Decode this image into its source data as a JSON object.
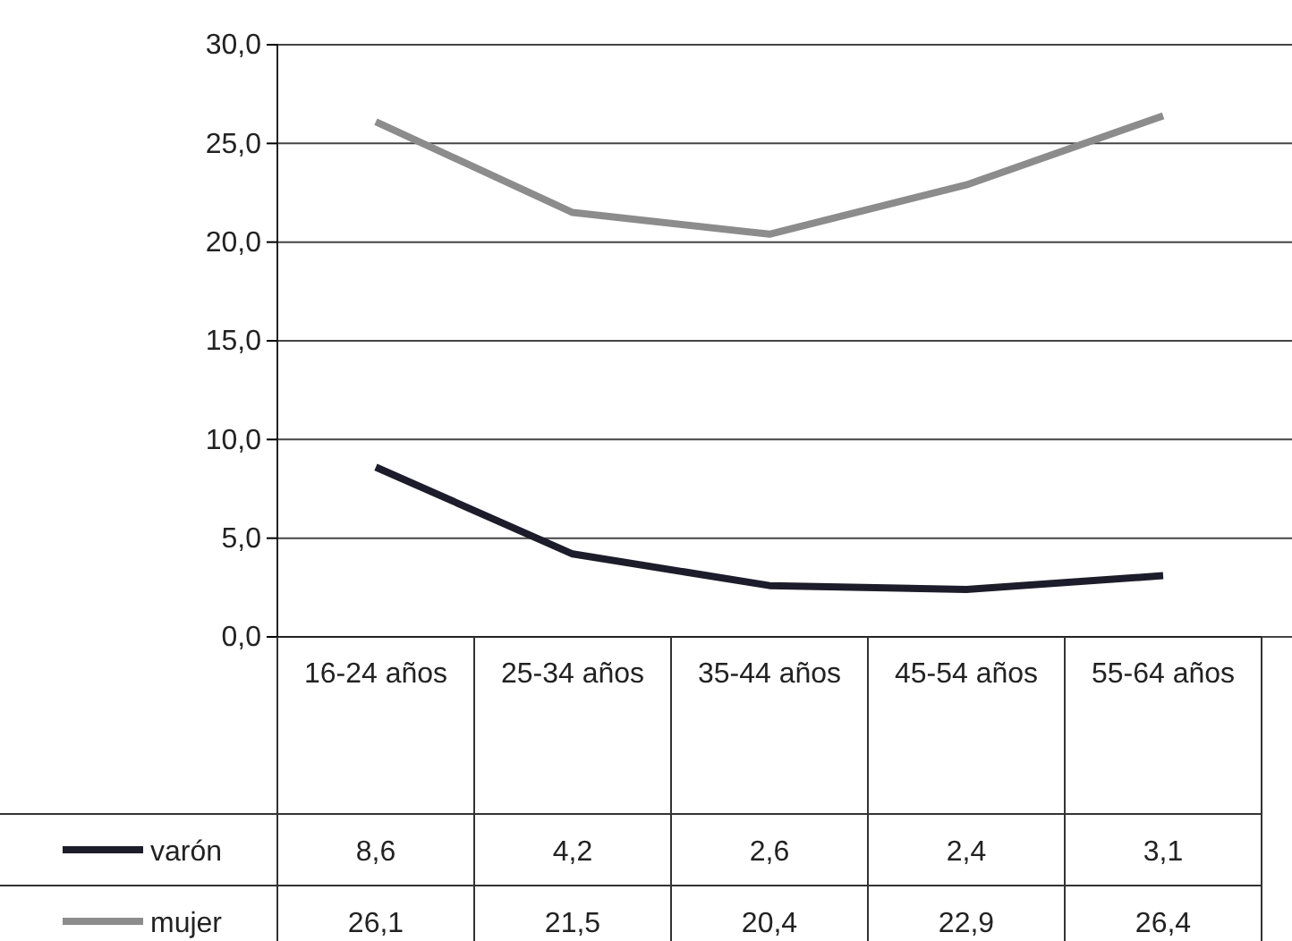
{
  "chart_data": {
    "type": "line",
    "categories": [
      "16-24 años",
      "25-34 años",
      "35-44 años",
      "45-54 años",
      "55-64 años"
    ],
    "series": [
      {
        "name": "varón",
        "color": "#1c1c2a",
        "values": [
          8.6,
          4.2,
          2.6,
          2.4,
          3.1
        ],
        "value_labels": [
          "8,6",
          "4,2",
          "2,6",
          "2,4",
          "3,1"
        ]
      },
      {
        "name": "mujer",
        "color": "#8c8c8c",
        "values": [
          26.1,
          21.5,
          20.4,
          22.9,
          26.4
        ],
        "value_labels": [
          "26,1",
          "21,5",
          "20,4",
          "22,9",
          "26,4"
        ]
      }
    ],
    "ylim": [
      0,
      30
    ],
    "yticks": [
      {
        "value": 0,
        "label": "0,0"
      },
      {
        "value": 5,
        "label": "5,0"
      },
      {
        "value": 10,
        "label": "10,0"
      },
      {
        "value": 15,
        "label": "15,0"
      },
      {
        "value": 20,
        "label": "20,0"
      },
      {
        "value": 25,
        "label": "25,0"
      },
      {
        "value": 30,
        "label": "30,0"
      }
    ],
    "grid": "y",
    "legend": "bottom left",
    "marker": "none",
    "line_style": "solid"
  }
}
